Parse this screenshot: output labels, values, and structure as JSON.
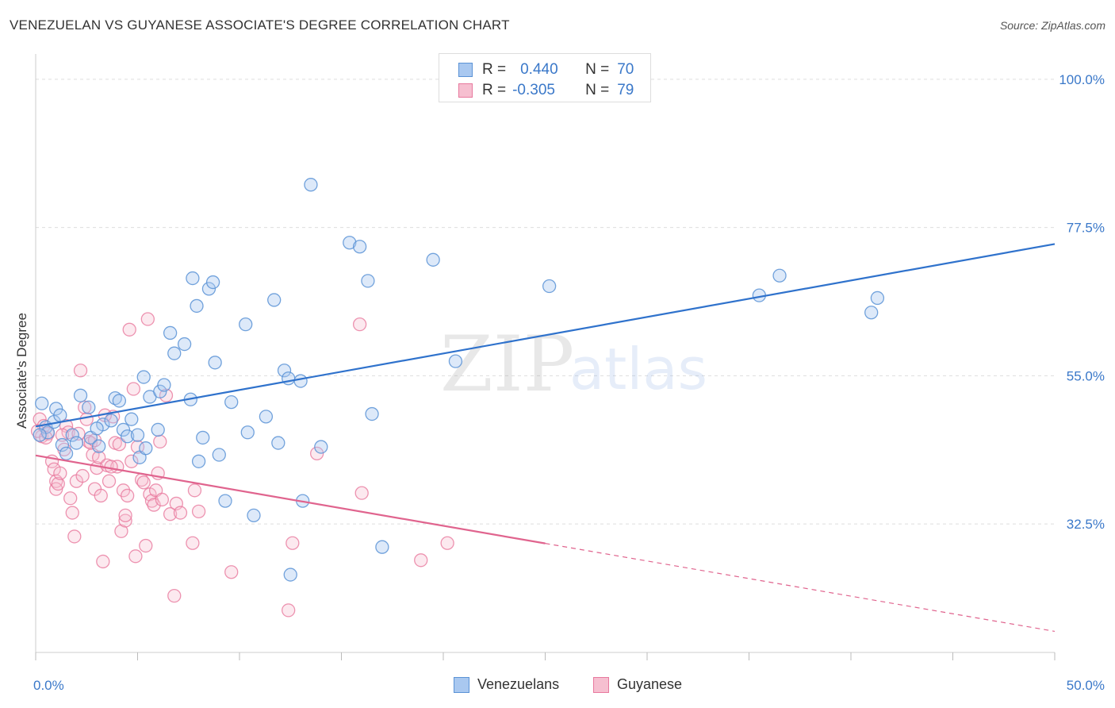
{
  "header": {
    "title": "VENEZUELAN VS GUYANESE ASSOCIATE'S DEGREE CORRELATION CHART",
    "source": "Source: ZipAtlas.com"
  },
  "watermark": {
    "zip": "ZIP",
    "atlas": "atlas"
  },
  "colors": {
    "venezuelans_fill": "#a9c8f0",
    "venezuelans_stroke": "#5b93d6",
    "venezuelans_line": "#2f72cc",
    "guyanese_fill": "#f6bfd0",
    "guyanese_stroke": "#e8799e",
    "guyanese_line": "#e0648e",
    "tick_text": "#3a78c9",
    "grid": "#dddddd"
  },
  "legend": {
    "rows": [
      {
        "r_label": "R =",
        "r_value": "0.440",
        "n_label": "N =",
        "n_value": "70"
      },
      {
        "r_label": "R =",
        "r_value": "-0.305",
        "n_label": "N =",
        "n_value": "79"
      }
    ]
  },
  "bottom_legend": {
    "items": [
      "Venezuelans",
      "Guyanese"
    ]
  },
  "chart_data": {
    "type": "scatter",
    "title": "VENEZUELAN VS GUYANESE ASSOCIATE'S DEGREE CORRELATION CHART",
    "xlabel": "",
    "ylabel": "Associate's Degree",
    "xlim": [
      0,
      50
    ],
    "ylim": [
      13,
      103
    ],
    "x_tick_labels": [
      "0.0%",
      "50.0%"
    ],
    "y_ticks": [
      32.5,
      55.0,
      77.5,
      100.0
    ],
    "y_tick_labels": [
      "32.5%",
      "55.0%",
      "77.5%",
      "100.0%"
    ],
    "grid": true,
    "series": [
      {
        "name": "Venezuelans",
        "r": 0.44,
        "n": 70,
        "trend": {
          "x": [
            0,
            50
          ],
          "y": [
            47.3,
            75.0
          ],
          "dashed_from": null
        },
        "points": [
          [
            0.3,
            50.8
          ],
          [
            0.5,
            47.2
          ],
          [
            0.6,
            46.4
          ],
          [
            0.9,
            48.0
          ],
          [
            1.0,
            50.0
          ],
          [
            1.2,
            49.0
          ],
          [
            1.3,
            44.5
          ],
          [
            1.5,
            43.2
          ],
          [
            1.8,
            46.0
          ],
          [
            2.0,
            44.8
          ],
          [
            2.2,
            52.0
          ],
          [
            2.6,
            50.2
          ],
          [
            2.7,
            45.6
          ],
          [
            3.1,
            44.3
          ],
          [
            3.3,
            47.6
          ],
          [
            3.7,
            48.2
          ],
          [
            3.9,
            51.6
          ],
          [
            4.1,
            51.2
          ],
          [
            4.3,
            46.8
          ],
          [
            4.5,
            45.8
          ],
          [
            4.7,
            48.4
          ],
          [
            5.0,
            46.0
          ],
          [
            5.1,
            42.6
          ],
          [
            5.3,
            54.8
          ],
          [
            5.4,
            44.0
          ],
          [
            5.6,
            51.8
          ],
          [
            6.0,
            46.8
          ],
          [
            6.1,
            52.6
          ],
          [
            6.3,
            53.6
          ],
          [
            6.6,
            61.5
          ],
          [
            6.8,
            58.4
          ],
          [
            7.3,
            59.8
          ],
          [
            7.6,
            51.4
          ],
          [
            7.7,
            69.8
          ],
          [
            7.9,
            65.6
          ],
          [
            8.2,
            45.6
          ],
          [
            8.5,
            68.2
          ],
          [
            8.7,
            69.2
          ],
          [
            8.8,
            57.0
          ],
          [
            9.0,
            43.0
          ],
          [
            9.3,
            36.0
          ],
          [
            9.6,
            51.0
          ],
          [
            10.3,
            62.8
          ],
          [
            10.4,
            46.4
          ],
          [
            10.7,
            33.8
          ],
          [
            11.3,
            48.8
          ],
          [
            11.7,
            66.5
          ],
          [
            11.9,
            44.8
          ],
          [
            12.2,
            55.8
          ],
          [
            12.4,
            54.6
          ],
          [
            13.0,
            54.2
          ],
          [
            13.1,
            36.0
          ],
          [
            13.5,
            84.0
          ],
          [
            14.0,
            44.2
          ],
          [
            15.4,
            75.2
          ],
          [
            15.9,
            74.6
          ],
          [
            16.3,
            69.4
          ],
          [
            16.5,
            49.2
          ],
          [
            17.0,
            29.0
          ],
          [
            19.5,
            72.6
          ],
          [
            20.6,
            57.2
          ],
          [
            25.2,
            68.6
          ],
          [
            35.5,
            67.2
          ],
          [
            36.5,
            70.2
          ],
          [
            41.0,
            64.6
          ],
          [
            41.3,
            66.8
          ],
          [
            12.5,
            24.8
          ],
          [
            8.0,
            42.0
          ],
          [
            3.0,
            47.0
          ],
          [
            0.2,
            46.0
          ]
        ]
      },
      {
        "name": "Guyanese",
        "r": -0.305,
        "n": 79,
        "trend": {
          "x": [
            0,
            50
          ],
          "y": [
            42.9,
            16.2
          ],
          "dashed_from": 25
        },
        "points": [
          [
            0.2,
            48.4
          ],
          [
            0.3,
            45.8
          ],
          [
            0.4,
            47.4
          ],
          [
            0.6,
            46.2
          ],
          [
            0.8,
            42.0
          ],
          [
            0.9,
            40.8
          ],
          [
            1.0,
            39.0
          ],
          [
            1.0,
            37.8
          ],
          [
            1.1,
            38.6
          ],
          [
            1.2,
            40.2
          ],
          [
            1.5,
            47.4
          ],
          [
            1.6,
            46.4
          ],
          [
            1.7,
            36.4
          ],
          [
            1.8,
            34.2
          ],
          [
            1.9,
            30.6
          ],
          [
            2.0,
            39.0
          ],
          [
            2.2,
            55.8
          ],
          [
            2.3,
            39.8
          ],
          [
            2.4,
            50.2
          ],
          [
            2.5,
            48.4
          ],
          [
            2.6,
            45.0
          ],
          [
            2.8,
            43.0
          ],
          [
            2.9,
            37.8
          ],
          [
            3.0,
            41.0
          ],
          [
            3.1,
            42.6
          ],
          [
            3.2,
            36.8
          ],
          [
            3.3,
            26.8
          ],
          [
            3.5,
            41.4
          ],
          [
            3.6,
            39.0
          ],
          [
            3.8,
            48.8
          ],
          [
            3.9,
            44.8
          ],
          [
            4.0,
            41.2
          ],
          [
            4.2,
            31.4
          ],
          [
            4.3,
            37.6
          ],
          [
            4.4,
            33.0
          ],
          [
            4.5,
            36.8
          ],
          [
            4.6,
            62.0
          ],
          [
            4.7,
            42.0
          ],
          [
            4.8,
            53.0
          ],
          [
            4.9,
            27.6
          ],
          [
            5.0,
            44.2
          ],
          [
            5.2,
            39.2
          ],
          [
            5.4,
            29.2
          ],
          [
            5.5,
            63.6
          ],
          [
            5.6,
            37.0
          ],
          [
            5.7,
            36.0
          ],
          [
            5.8,
            35.4
          ],
          [
            5.9,
            37.6
          ],
          [
            6.0,
            40.2
          ],
          [
            6.1,
            45.0
          ],
          [
            6.4,
            52.0
          ],
          [
            6.6,
            34.0
          ],
          [
            6.8,
            21.6
          ],
          [
            6.9,
            35.6
          ],
          [
            7.1,
            34.2
          ],
          [
            7.7,
            29.6
          ],
          [
            7.8,
            37.6
          ],
          [
            8.0,
            34.4
          ],
          [
            9.6,
            25.2
          ],
          [
            12.4,
            19.4
          ],
          [
            12.6,
            29.6
          ],
          [
            13.8,
            43.2
          ],
          [
            15.9,
            62.8
          ],
          [
            16.0,
            37.2
          ],
          [
            18.9,
            27.0
          ],
          [
            20.2,
            29.6
          ],
          [
            1.3,
            46.0
          ],
          [
            2.1,
            46.2
          ],
          [
            0.1,
            46.6
          ],
          [
            2.7,
            44.8
          ],
          [
            3.4,
            49.0
          ],
          [
            4.1,
            44.6
          ],
          [
            5.3,
            38.8
          ],
          [
            6.2,
            36.2
          ],
          [
            0.5,
            45.6
          ],
          [
            1.4,
            43.8
          ],
          [
            2.9,
            45.2
          ],
          [
            3.7,
            41.2
          ],
          [
            4.4,
            33.8
          ]
        ]
      }
    ]
  }
}
